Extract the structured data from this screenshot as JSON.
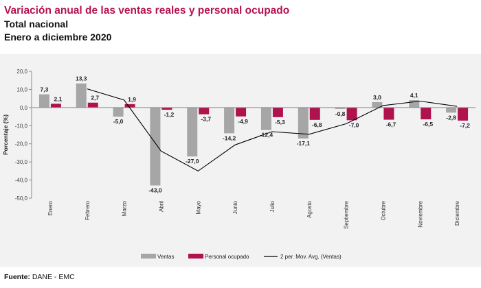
{
  "header": {
    "title": "Variación anual de las ventas reales y personal ocupado",
    "subtitle_1": "Total nacional",
    "subtitle_2": "Enero a diciembre 2020"
  },
  "footer": {
    "source_label": "Fuente:",
    "source_text": "DANE - EMC"
  },
  "colors": {
    "title": "#b5124f",
    "ventas": "#a6a6a6",
    "personal": "#b0124e",
    "line": "#000000",
    "panel": "#f2f2f2"
  },
  "chart_data": {
    "type": "bar",
    "title": "",
    "xlabel": "",
    "ylabel": "Porcentaje (%)",
    "ylim": [
      -50,
      20
    ],
    "yticks": [
      "20,0",
      "10,0",
      "0,0",
      "-10,0",
      "-20,0",
      "-30,0",
      "-40,0",
      "-50,0"
    ],
    "ytick_values": [
      20,
      10,
      0,
      -10,
      -20,
      -30,
      -40,
      -50
    ],
    "categories": [
      "Enero",
      "Febrero",
      "Marzo",
      "Abril",
      "Mayo",
      "Junio",
      "Julio",
      "Agosto",
      "Septiembre",
      "Octubre",
      "Noviembre",
      "Diciembre"
    ],
    "series": [
      {
        "name": "Ventas",
        "kind": "bar",
        "values": [
          7.3,
          13.3,
          -5.0,
          -43.0,
          -27.0,
          -14.2,
          -12.4,
          -17.1,
          -0.8,
          3.0,
          4.1,
          -2.8
        ],
        "labels": [
          "7,3",
          "13,3",
          "-5,0",
          "-43,0",
          "-27,0",
          "-14,2",
          "-12,4",
          "-17,1",
          "-0,8",
          "3,0",
          "4,1",
          "-2,8"
        ]
      },
      {
        "name": "Personal ocupado",
        "kind": "bar",
        "values": [
          2.1,
          2.7,
          1.9,
          -1.2,
          -3.7,
          -4.9,
          -5.3,
          -6.8,
          -7.0,
          -6.7,
          -6.5,
          -7.2
        ],
        "labels": [
          "2,1",
          "2,7",
          "1,9",
          "-1,2",
          "-3,7",
          "-4,9",
          "-5,3",
          "-6,8",
          "-7,0",
          "-6,7",
          "-6,5",
          "-7,2"
        ]
      },
      {
        "name": "2 per. Mov. Avg. (Ventas)",
        "kind": "line",
        "values": [
          null,
          10.3,
          4.15,
          -24.0,
          -35.0,
          -20.6,
          -13.3,
          -14.75,
          -8.95,
          1.1,
          3.55,
          0.65
        ]
      }
    ],
    "legend_position": "bottom",
    "grid": false
  }
}
